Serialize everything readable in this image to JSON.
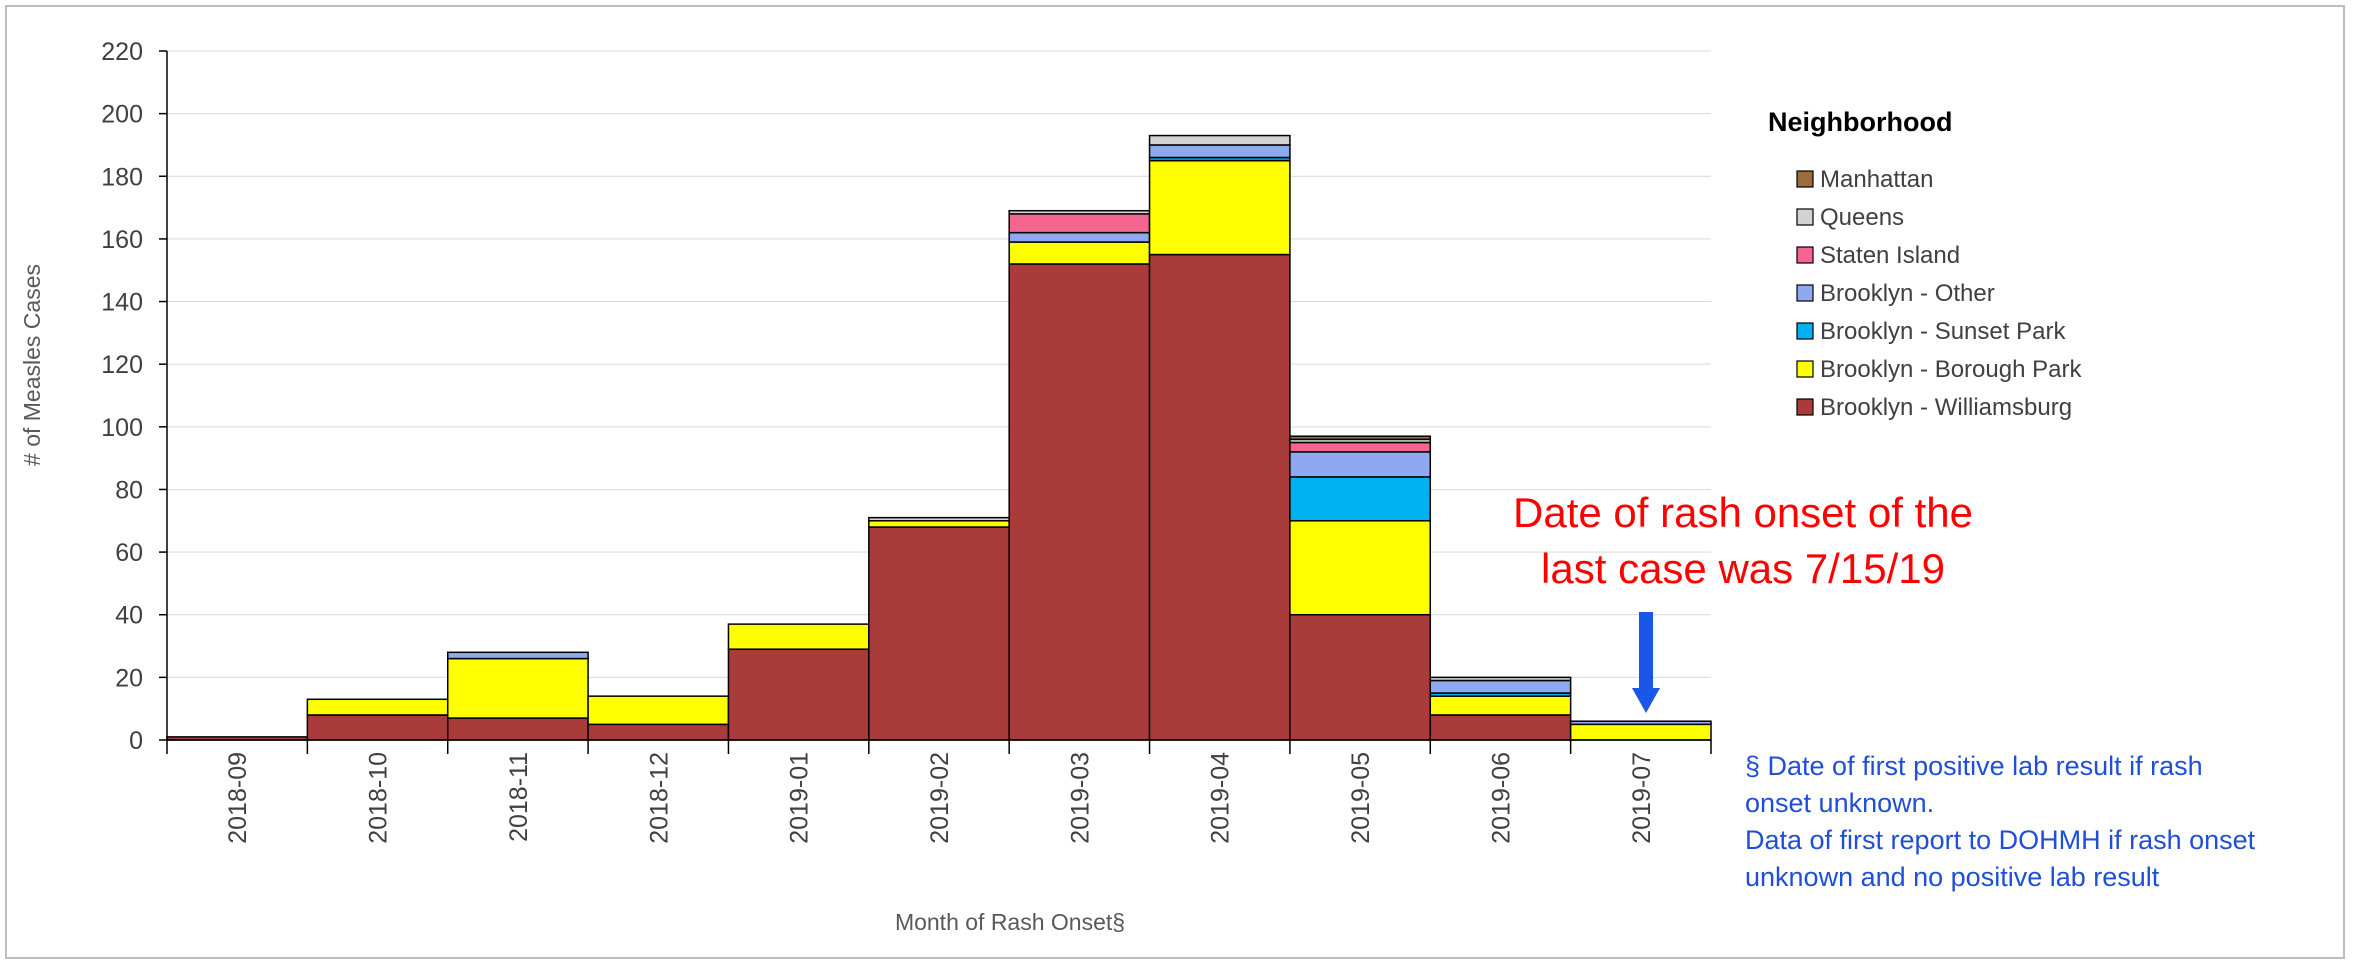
{
  "chart_data": {
    "type": "bar",
    "stacked": true,
    "categories": [
      "2018-09",
      "2018-10",
      "2018-11",
      "2018-12",
      "2019-01",
      "2019-02",
      "2019-03",
      "2019-04",
      "2019-05",
      "2019-06",
      "2019-07"
    ],
    "series": [
      {
        "name": "Brooklyn - Williamsburg",
        "color": "#a93c3a",
        "values": [
          1,
          8,
          7,
          5,
          29,
          68,
          152,
          155,
          40,
          8,
          0
        ]
      },
      {
        "name": "Brooklyn - Borough Park",
        "color": "#ffff00",
        "values": [
          0,
          5,
          19,
          9,
          8,
          2,
          7,
          30,
          30,
          6,
          5
        ]
      },
      {
        "name": "Brooklyn - Sunset Park",
        "color": "#00b0f0",
        "values": [
          0,
          0,
          0,
          0,
          0,
          0,
          0,
          1,
          14,
          1,
          0
        ]
      },
      {
        "name": "Brooklyn - Other",
        "color": "#8ea9ef",
        "values": [
          0,
          0,
          2,
          0,
          0,
          0,
          3,
          4,
          8,
          4,
          1
        ]
      },
      {
        "name": "Staten Island",
        "color": "#f4668f",
        "values": [
          0,
          0,
          0,
          0,
          0,
          0,
          6,
          0,
          3,
          0,
          0
        ]
      },
      {
        "name": "Queens",
        "color": "#d3d3d3",
        "values": [
          0,
          0,
          0,
          0,
          0,
          1,
          1,
          3,
          1,
          1,
          0
        ]
      },
      {
        "name": "Manhattan",
        "color": "#9c6b3e",
        "values": [
          0,
          0,
          0,
          0,
          0,
          0,
          0,
          0,
          1,
          0,
          0
        ]
      }
    ],
    "xlabel": "Month of Rash Onset§",
    "ylabel": "# of Measles Cases",
    "ylim": [
      0,
      220
    ],
    "yticks": [
      0,
      20,
      40,
      60,
      80,
      100,
      120,
      140,
      160,
      180,
      200,
      220
    ],
    "grid": true,
    "legend": {
      "title": "Neighborhood",
      "placement": "right",
      "order": [
        "Manhattan",
        "Queens",
        "Staten Island",
        "Brooklyn - Other",
        "Brooklyn - Sunset Park",
        "Brooklyn - Borough Park",
        "Brooklyn - Williamsburg"
      ]
    },
    "annotations": {
      "rash_note_line1": "Date of rash onset of the",
      "rash_note_line2": "last case was 7/15/19",
      "arrow_color": "#1a56e8",
      "footnote_lines": [
        " § Date of first positive lab result if rash",
        "onset unknown.",
        "Data of first report to DOHMH if rash onset",
        "unknown and no positive lab result"
      ]
    }
  }
}
